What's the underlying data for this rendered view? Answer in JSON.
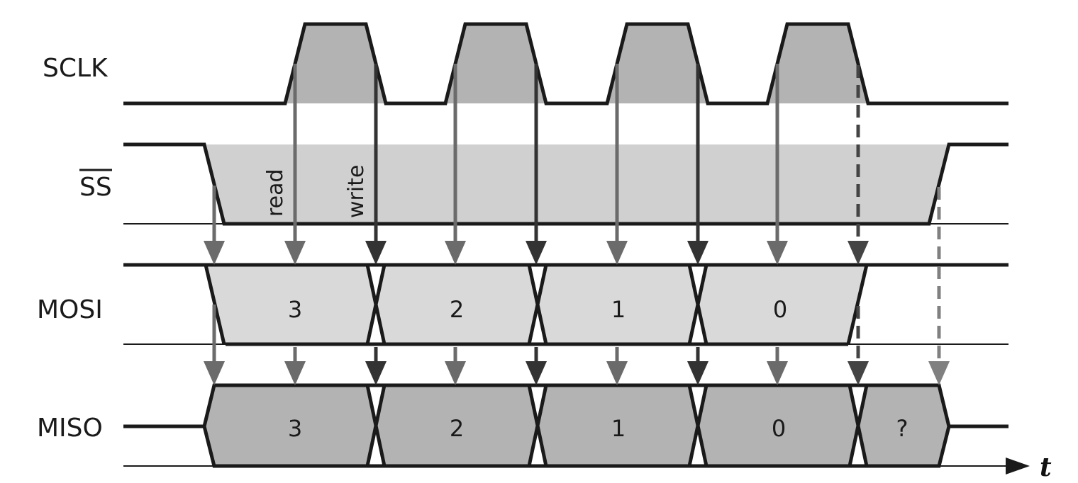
{
  "signals": {
    "sclk": "SCLK",
    "ss": "SS",
    "mosi": "MOSI",
    "miso": "MISO"
  },
  "edge_labels": {
    "read": "read",
    "write": "write"
  },
  "mosi_bits": [
    "3",
    "2",
    "1",
    "0"
  ],
  "miso_bits": [
    "3",
    "2",
    "1",
    "0",
    "?"
  ],
  "time_axis_label": "t",
  "colors": {
    "line": "#1a1a1a",
    "clock_fill": "#b3b3b3",
    "ss_fill": "#d0d0d0",
    "mosi_fill": "#d9d9d9",
    "miso_fill": "#b3b3b3",
    "read_arrow": "#6b6b6b",
    "write_arrow": "#333333",
    "dashed_late": "#444444",
    "dashed_ss": "#808080"
  }
}
